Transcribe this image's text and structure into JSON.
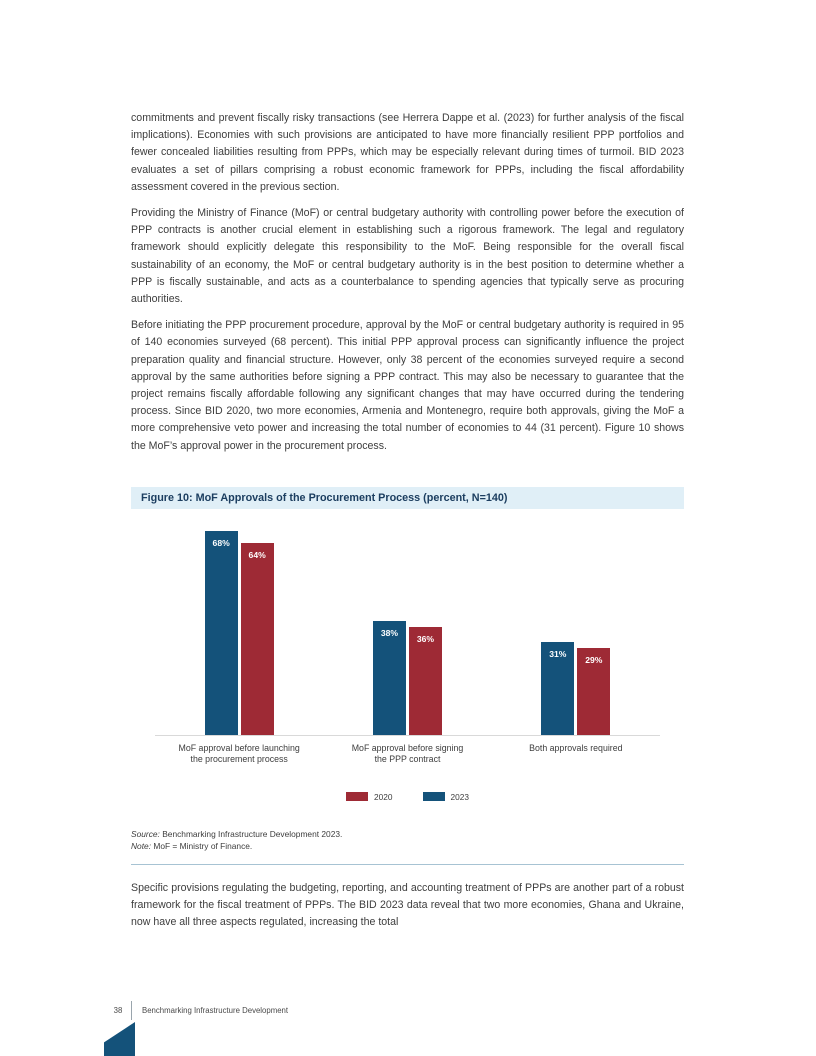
{
  "body": {
    "paragraphs": [
      "commitments and prevent fiscally risky transactions (see Herrera Dappe et al. (2023) for further analysis of the fiscal implications). Economies with such provisions are anticipated to have more financially resilient PPP portfolios and fewer concealed liabilities resulting from PPPs, which may be especially relevant during times of turmoil. BID 2023 evaluates a set of pillars comprising a robust economic framework for PPPs, including the fiscal affordability assessment covered in the previous section.",
      "Providing the Ministry of Finance (MoF) or central budgetary authority with controlling power before the execution of PPP contracts is another crucial element in establishing such a rigorous framework. The legal and regulatory framework should explicitly delegate this responsibility to the MoF. Being responsible for the overall fiscal sustainability of an economy, the MoF or central budgetary authority is in the best position to determine whether a PPP is fiscally sustainable, and acts as a counterbalance to spending agencies that typically serve as procuring authorities.",
      "Before initiating the PPP procurement procedure, approval by the MoF or central budgetary authority is required in 95 of 140 economies surveyed (68 percent). This initial PPP approval process can significantly influence the project preparation quality and financial structure. However, only 38 percent of the economies surveyed require a second approval by the same authorities before signing a PPP contract. This may also be necessary to guarantee that the project remains fiscally affordable following any significant changes that may have occurred during the tendering process. Since BID 2020, two more economies, Armenia and Montenegro, require both approvals, giving the MoF a more comprehensive veto power and increasing the total number of economies to 44 (31 percent). Figure 10 shows the MoF’s approval power in the procurement process.",
      "Specific provisions regulating the budgeting, reporting, and accounting treatment of PPPs are another part of a robust framework for the fiscal treatment of PPPs. The BID 2023 data reveal that two more economies, Ghana and Ukraine, now have all three aspects regulated, increasing the total"
    ]
  },
  "figure": {
    "title": "Figure 10: MoF Approvals of the Procurement Process (percent, N=140)",
    "source_label": "Source:",
    "source_text": " Benchmarking Infrastructure Development 2023.",
    "note_label": "Note:",
    "note_text": " MoF = Ministry of Finance."
  },
  "chart_data": {
    "type": "bar",
    "title": "Figure 10: MoF Approvals of the Procurement Process (percent, N=140)",
    "categories": [
      "MoF approval before launching\nthe procurement process",
      "MoF approval before signing\nthe PPP contract",
      "Both approvals required"
    ],
    "series": [
      {
        "name": "2023",
        "color": "#14527a",
        "values": [
          68,
          38,
          31
        ]
      },
      {
        "name": "2020",
        "color": "#9e2a35",
        "values": [
          64,
          36,
          29
        ]
      }
    ],
    "legend": [
      {
        "label": "2020",
        "color": "#9e2a35"
      },
      {
        "label": "2023",
        "color": "#14527a"
      }
    ],
    "value_suffix": "%",
    "ylim": [
      0,
      70
    ],
    "grid": false,
    "legend_position": "bottom",
    "value_labels": "inside-top"
  },
  "footer": {
    "page_number": "38",
    "text": "Benchmarking Infrastructure Development"
  },
  "colors": {
    "accent_blue": "#14527a",
    "accent_red": "#9e2a35",
    "figure_header_bg": "#e0eff7",
    "figure_header_text": "#1c3e60",
    "separator_rule": "#a7c3d3",
    "axis_line": "#d9d9d9"
  }
}
